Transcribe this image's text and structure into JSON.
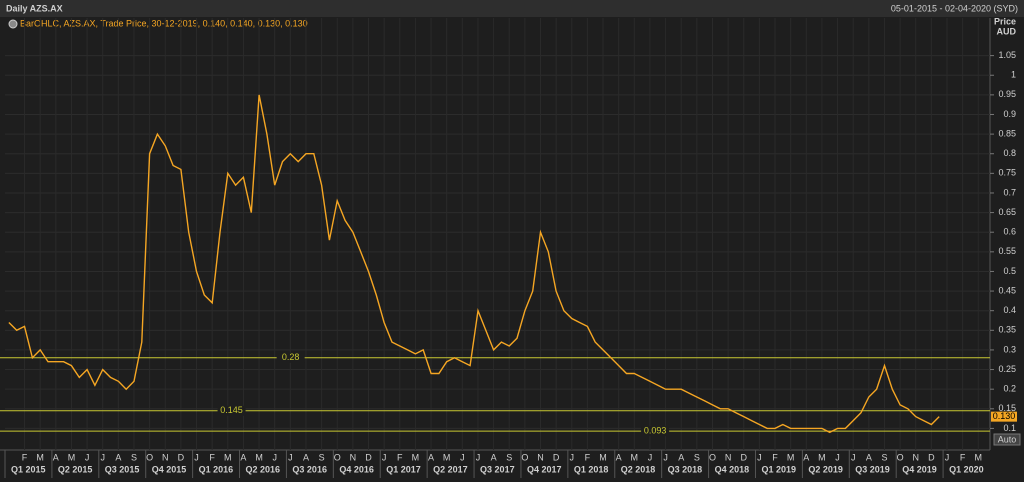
{
  "chart_data": {
    "type": "line",
    "title": "Daily AZS.AX",
    "date_range": "05-01-2015 - 02-04-2020 (SYD)",
    "legend_text": "BarOHLC, AZS.AX, Trade Price, 30-12-2019, 0.140, 0.140, 0.130, 0.130",
    "y_label": [
      "Price",
      "AUD"
    ],
    "button": "Auto",
    "categories": [
      null,
      null,
      "F",
      null,
      "M",
      null,
      "A",
      null,
      "M",
      null,
      "J",
      null,
      "J",
      null,
      "A",
      null,
      "S",
      null,
      "O",
      null,
      "N",
      null,
      "D",
      null,
      "J",
      null,
      "F",
      null,
      "M",
      null,
      "A",
      null,
      "M",
      null,
      "J",
      null,
      "J",
      null,
      "A",
      null,
      "S",
      null,
      "O",
      null,
      "N",
      null,
      "D",
      null,
      "J",
      null,
      "F",
      null,
      "M",
      null,
      "A",
      null,
      "M",
      null,
      "J",
      null,
      "J",
      null,
      "A",
      null,
      "S",
      null,
      "O",
      null,
      "N",
      null,
      "D",
      null,
      "J",
      null,
      "F",
      null,
      "M",
      null,
      "A",
      null,
      "M",
      null,
      "J",
      null,
      "J",
      null,
      "A",
      null,
      "S",
      null,
      "O",
      null,
      "N",
      null,
      "D",
      null,
      "J",
      null,
      "F",
      null,
      "M",
      null,
      "A",
      null,
      "M",
      null,
      "J",
      null,
      "J",
      null,
      "A",
      null,
      "S",
      null,
      "O",
      null,
      "N",
      null,
      "D",
      null,
      "J",
      null,
      "F",
      null,
      "M",
      null
    ],
    "quarters": [
      "Q1 2015",
      "Q2 2015",
      "Q3 2015",
      "Q4 2015",
      "Q1 2016",
      "Q2 2016",
      "Q3 2016",
      "Q4 2016",
      "Q1 2017",
      "Q2 2017",
      "Q3 2017",
      "Q4 2017",
      "Q1 2018",
      "Q2 2018",
      "Q3 2018",
      "Q4 2018",
      "Q1 2019",
      "Q2 2019",
      "Q3 2019",
      "Q4 2019",
      "Q1 2020"
    ],
    "series": [
      {
        "name": "AZS.AX",
        "color": "#f5a623",
        "values": [
          0.37,
          0.35,
          0.36,
          0.28,
          0.3,
          0.27,
          0.27,
          0.27,
          0.26,
          0.23,
          0.25,
          0.21,
          0.25,
          0.23,
          0.22,
          0.2,
          0.22,
          0.32,
          0.8,
          0.85,
          0.82,
          0.77,
          0.76,
          0.6,
          0.5,
          0.44,
          0.42,
          0.6,
          0.75,
          0.72,
          0.74,
          0.65,
          0.95,
          0.85,
          0.72,
          0.78,
          0.8,
          0.78,
          0.8,
          0.8,
          0.72,
          0.58,
          0.68,
          0.63,
          0.6,
          0.55,
          0.5,
          0.44,
          0.37,
          0.32,
          0.31,
          0.3,
          0.29,
          0.3,
          0.24,
          0.24,
          0.27,
          0.28,
          0.27,
          0.26,
          0.4,
          0.35,
          0.3,
          0.32,
          0.31,
          0.33,
          0.4,
          0.45,
          0.6,
          0.55,
          0.45,
          0.4,
          0.38,
          0.37,
          0.36,
          0.32,
          0.3,
          0.28,
          0.26,
          0.24,
          0.24,
          0.23,
          0.22,
          0.21,
          0.2,
          0.2,
          0.2,
          0.19,
          0.18,
          0.17,
          0.16,
          0.15,
          0.15,
          0.14,
          0.13,
          0.12,
          0.11,
          0.1,
          0.1,
          0.11,
          0.1,
          0.1,
          0.1,
          0.1,
          0.1,
          0.09,
          0.1,
          0.1,
          0.12,
          0.14,
          0.18,
          0.2,
          0.26,
          0.2,
          0.16,
          0.15,
          0.13,
          0.12,
          0.11,
          0.13,
          null,
          null,
          null,
          null,
          null,
          null
        ]
      }
    ],
    "ylim": [
      0.045,
      1.1
    ],
    "yticks": [
      0.1,
      0.15,
      0.2,
      0.25,
      0.3,
      0.35,
      0.4,
      0.45,
      0.5,
      0.55,
      0.6,
      0.65,
      0.7,
      0.75,
      0.8,
      0.85,
      0.9,
      0.95,
      1,
      1.05
    ],
    "hlines": [
      0.28,
      0.145,
      0.093
    ],
    "hline_color": "#c8c832",
    "last_value": {
      "value": 0.13,
      "label": "0.130"
    },
    "grid": true
  }
}
